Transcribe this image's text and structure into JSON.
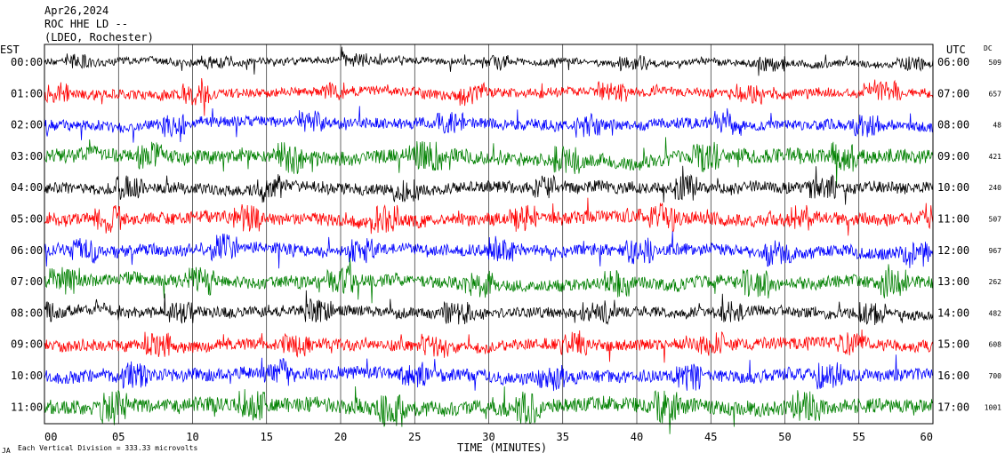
{
  "header": {
    "date": "Apr26,2024",
    "station": "ROC HHE LD --",
    "network": "(LDEO, Rochester)"
  },
  "footer": {
    "scale_note": "Each Vertical Division =  333.33 microvolts",
    "corner_mark": "JA"
  },
  "chart_data": {
    "type": "line",
    "title": "",
    "xlabel": "TIME (MINUTES)",
    "ylabel_left": "EST",
    "ylabel_right": "UTC",
    "dc_header": "DC",
    "xlim": [
      0,
      60
    ],
    "x_ticks": [
      "00",
      "05",
      "10",
      "15",
      "20",
      "25",
      "30",
      "35",
      "40",
      "45",
      "50",
      "55",
      "60"
    ],
    "grid": "vertical lines every 5 minutes",
    "color_cycle": [
      "#000000",
      "#ff0000",
      "#0000ff",
      "#008000"
    ],
    "rows": [
      {
        "est": "00:00",
        "utc": "06:00",
        "dc": "509",
        "color": "#000000",
        "amplitude": 0.55
      },
      {
        "est": "01:00",
        "utc": "07:00",
        "dc": "657",
        "color": "#ff0000",
        "amplitude": 0.75
      },
      {
        "est": "02:00",
        "utc": "08:00",
        "dc": "48",
        "color": "#0000ff",
        "amplitude": 0.85
      },
      {
        "est": "03:00",
        "utc": "09:00",
        "dc": "421",
        "color": "#008000",
        "amplitude": 1.1
      },
      {
        "est": "04:00",
        "utc": "10:00",
        "dc": "240",
        "color": "#000000",
        "amplitude": 0.9
      },
      {
        "est": "05:00",
        "utc": "11:00",
        "dc": "507",
        "color": "#ff0000",
        "amplitude": 1.0
      },
      {
        "est": "06:00",
        "utc": "12:00",
        "dc": "967",
        "color": "#0000ff",
        "amplitude": 0.95
      },
      {
        "est": "07:00",
        "utc": "13:00",
        "dc": "262",
        "color": "#008000",
        "amplitude": 1.0
      },
      {
        "est": "08:00",
        "utc": "14:00",
        "dc": "482",
        "color": "#000000",
        "amplitude": 0.85
      },
      {
        "est": "09:00",
        "utc": "15:00",
        "dc": "608",
        "color": "#ff0000",
        "amplitude": 0.9
      },
      {
        "est": "10:00",
        "utc": "16:00",
        "dc": "700",
        "color": "#0000ff",
        "amplitude": 1.0
      },
      {
        "est": "11:00",
        "utc": "17:00",
        "dc": "1001",
        "color": "#008000",
        "amplitude": 1.2
      }
    ]
  }
}
